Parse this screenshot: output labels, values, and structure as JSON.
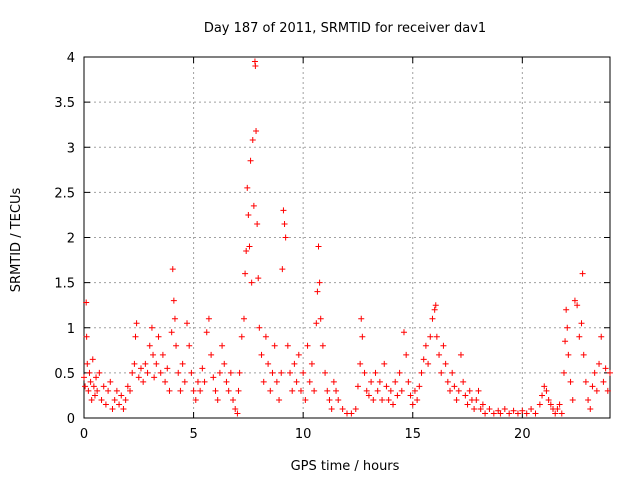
{
  "chart_data": {
    "type": "scatter",
    "title": "Day 187 of 2011, SRMTID for receiver dav1",
    "xlabel": "GPS time / hours",
    "ylabel": "SRMTID / TECUs",
    "xlim": [
      0,
      24
    ],
    "ylim": [
      0,
      4
    ],
    "x_ticks": [
      0,
      5,
      10,
      15,
      20
    ],
    "x_tick_labels": [
      "0",
      "5",
      "10",
      "15",
      "20"
    ],
    "y_ticks": [
      0,
      0.5,
      1,
      1.5,
      2,
      2.5,
      3,
      3.5,
      4
    ],
    "y_tick_labels": [
      "0",
      "0.5",
      "1",
      "1.5",
      "2",
      "2.5",
      "3",
      "3.5",
      "4"
    ],
    "grid": true,
    "marker": "plus",
    "colors": {
      "series": "#ff0000",
      "grid": "#a0a0a0",
      "axis": "#000000"
    },
    "series": [
      {
        "name": "dav1",
        "points": [
          [
            0.0,
            0.45
          ],
          [
            0.05,
            0.35
          ],
          [
            0.1,
            1.28
          ],
          [
            0.12,
            0.9
          ],
          [
            0.15,
            0.6
          ],
          [
            0.2,
            0.3
          ],
          [
            0.25,
            0.5
          ],
          [
            0.3,
            0.4
          ],
          [
            0.35,
            0.2
          ],
          [
            0.4,
            0.65
          ],
          [
            0.45,
            0.35
          ],
          [
            0.5,
            0.25
          ],
          [
            0.55,
            0.45
          ],
          [
            0.6,
            0.3
          ],
          [
            0.7,
            0.5
          ],
          [
            0.8,
            0.2
          ],
          [
            0.9,
            0.35
          ],
          [
            1.0,
            0.15
          ],
          [
            1.1,
            0.3
          ],
          [
            1.2,
            0.4
          ],
          [
            1.3,
            0.1
          ],
          [
            1.4,
            0.2
          ],
          [
            1.5,
            0.3
          ],
          [
            1.6,
            0.15
          ],
          [
            1.7,
            0.25
          ],
          [
            1.8,
            0.1
          ],
          [
            1.9,
            0.2
          ],
          [
            2.0,
            0.35
          ],
          [
            2.1,
            0.3
          ],
          [
            2.2,
            0.5
          ],
          [
            2.3,
            0.6
          ],
          [
            2.35,
            0.9
          ],
          [
            2.4,
            1.05
          ],
          [
            2.5,
            0.45
          ],
          [
            2.6,
            0.55
          ],
          [
            2.7,
            0.4
          ],
          [
            2.8,
            0.6
          ],
          [
            2.9,
            0.5
          ],
          [
            3.0,
            0.8
          ],
          [
            3.1,
            1.0
          ],
          [
            3.15,
            0.7
          ],
          [
            3.2,
            0.45
          ],
          [
            3.3,
            0.6
          ],
          [
            3.4,
            0.9
          ],
          [
            3.5,
            0.5
          ],
          [
            3.6,
            0.7
          ],
          [
            3.7,
            0.4
          ],
          [
            3.8,
            0.55
          ],
          [
            3.9,
            0.3
          ],
          [
            4.0,
            0.95
          ],
          [
            4.05,
            1.65
          ],
          [
            4.1,
            1.3
          ],
          [
            4.15,
            1.1
          ],
          [
            4.2,
            0.8
          ],
          [
            4.3,
            0.5
          ],
          [
            4.4,
            0.3
          ],
          [
            4.5,
            0.6
          ],
          [
            4.6,
            0.4
          ],
          [
            4.7,
            1.05
          ],
          [
            4.8,
            0.8
          ],
          [
            4.9,
            0.5
          ],
          [
            5.0,
            0.3
          ],
          [
            5.1,
            0.2
          ],
          [
            5.2,
            0.4
          ],
          [
            5.3,
            0.3
          ],
          [
            5.4,
            0.55
          ],
          [
            5.5,
            0.4
          ],
          [
            5.6,
            0.95
          ],
          [
            5.7,
            1.1
          ],
          [
            5.8,
            0.7
          ],
          [
            5.9,
            0.45
          ],
          [
            6.0,
            0.3
          ],
          [
            6.1,
            0.2
          ],
          [
            6.2,
            0.5
          ],
          [
            6.3,
            0.8
          ],
          [
            6.4,
            0.6
          ],
          [
            6.5,
            0.4
          ],
          [
            6.6,
            0.3
          ],
          [
            6.7,
            0.5
          ],
          [
            6.8,
            0.2
          ],
          [
            6.9,
            0.1
          ],
          [
            7.0,
            0.05
          ],
          [
            7.05,
            0.3
          ],
          [
            7.1,
            0.5
          ],
          [
            7.2,
            0.9
          ],
          [
            7.3,
            1.1
          ],
          [
            7.35,
            1.6
          ],
          [
            7.4,
            1.85
          ],
          [
            7.45,
            2.55
          ],
          [
            7.5,
            2.25
          ],
          [
            7.55,
            1.9
          ],
          [
            7.6,
            2.85
          ],
          [
            7.65,
            1.5
          ],
          [
            7.7,
            3.08
          ],
          [
            7.75,
            2.35
          ],
          [
            7.8,
            3.95
          ],
          [
            7.82,
            3.9
          ],
          [
            7.85,
            3.18
          ],
          [
            7.9,
            2.15
          ],
          [
            7.95,
            1.55
          ],
          [
            8.0,
            1.0
          ],
          [
            8.1,
            0.7
          ],
          [
            8.2,
            0.4
          ],
          [
            8.3,
            0.9
          ],
          [
            8.4,
            0.6
          ],
          [
            8.5,
            0.3
          ],
          [
            8.6,
            0.5
          ],
          [
            8.7,
            0.8
          ],
          [
            8.8,
            0.4
          ],
          [
            8.9,
            0.2
          ],
          [
            9.0,
            0.5
          ],
          [
            9.05,
            1.65
          ],
          [
            9.1,
            2.3
          ],
          [
            9.15,
            2.15
          ],
          [
            9.2,
            2.0
          ],
          [
            9.3,
            0.8
          ],
          [
            9.4,
            0.5
          ],
          [
            9.5,
            0.3
          ],
          [
            9.6,
            0.6
          ],
          [
            9.7,
            0.4
          ],
          [
            9.8,
            0.7
          ],
          [
            9.9,
            0.3
          ],
          [
            10.0,
            0.5
          ],
          [
            10.1,
            0.2
          ],
          [
            10.2,
            0.8
          ],
          [
            10.3,
            0.4
          ],
          [
            10.4,
            0.6
          ],
          [
            10.5,
            0.3
          ],
          [
            10.6,
            1.05
          ],
          [
            10.65,
            1.4
          ],
          [
            10.7,
            1.9
          ],
          [
            10.75,
            1.5
          ],
          [
            10.8,
            1.1
          ],
          [
            10.9,
            0.8
          ],
          [
            11.0,
            0.5
          ],
          [
            11.1,
            0.3
          ],
          [
            11.2,
            0.2
          ],
          [
            11.3,
            0.1
          ],
          [
            11.4,
            0.4
          ],
          [
            11.5,
            0.3
          ],
          [
            11.6,
            0.2
          ],
          [
            11.8,
            0.1
          ],
          [
            12.0,
            0.05
          ],
          [
            12.2,
            0.05
          ],
          [
            12.4,
            0.1
          ],
          [
            12.5,
            0.35
          ],
          [
            12.6,
            0.6
          ],
          [
            12.65,
            1.1
          ],
          [
            12.7,
            0.9
          ],
          [
            12.8,
            0.5
          ],
          [
            12.9,
            0.3
          ],
          [
            13.0,
            0.25
          ],
          [
            13.1,
            0.4
          ],
          [
            13.2,
            0.2
          ],
          [
            13.3,
            0.5
          ],
          [
            13.4,
            0.3
          ],
          [
            13.5,
            0.4
          ],
          [
            13.6,
            0.2
          ],
          [
            13.7,
            0.6
          ],
          [
            13.8,
            0.35
          ],
          [
            13.9,
            0.2
          ],
          [
            14.0,
            0.3
          ],
          [
            14.1,
            0.15
          ],
          [
            14.2,
            0.4
          ],
          [
            14.3,
            0.25
          ],
          [
            14.4,
            0.5
          ],
          [
            14.5,
            0.3
          ],
          [
            14.6,
            0.95
          ],
          [
            14.7,
            0.7
          ],
          [
            14.8,
            0.4
          ],
          [
            14.9,
            0.25
          ],
          [
            15.0,
            0.15
          ],
          [
            15.1,
            0.3
          ],
          [
            15.2,
            0.2
          ],
          [
            15.3,
            0.35
          ],
          [
            15.4,
            0.5
          ],
          [
            15.5,
            0.65
          ],
          [
            15.6,
            0.8
          ],
          [
            15.7,
            0.6
          ],
          [
            15.8,
            0.9
          ],
          [
            15.9,
            1.1
          ],
          [
            16.0,
            1.2
          ],
          [
            16.05,
            1.25
          ],
          [
            16.1,
            0.9
          ],
          [
            16.2,
            0.7
          ],
          [
            16.3,
            0.5
          ],
          [
            16.4,
            0.8
          ],
          [
            16.5,
            0.6
          ],
          [
            16.6,
            0.4
          ],
          [
            16.7,
            0.3
          ],
          [
            16.8,
            0.5
          ],
          [
            16.9,
            0.35
          ],
          [
            17.0,
            0.2
          ],
          [
            17.1,
            0.3
          ],
          [
            17.2,
            0.7
          ],
          [
            17.3,
            0.4
          ],
          [
            17.4,
            0.25
          ],
          [
            17.5,
            0.15
          ],
          [
            17.6,
            0.3
          ],
          [
            17.7,
            0.2
          ],
          [
            17.8,
            0.1
          ],
          [
            17.9,
            0.2
          ],
          [
            18.0,
            0.3
          ],
          [
            18.1,
            0.1
          ],
          [
            18.2,
            0.15
          ],
          [
            18.3,
            0.05
          ],
          [
            18.5,
            0.1
          ],
          [
            18.7,
            0.05
          ],
          [
            18.9,
            0.08
          ],
          [
            19.0,
            0.05
          ],
          [
            19.2,
            0.1
          ],
          [
            19.4,
            0.05
          ],
          [
            19.6,
            0.08
          ],
          [
            19.8,
            0.05
          ],
          [
            20.0,
            0.08
          ],
          [
            20.2,
            0.05
          ],
          [
            20.4,
            0.1
          ],
          [
            20.6,
            0.05
          ],
          [
            20.8,
            0.15
          ],
          [
            20.9,
            0.25
          ],
          [
            21.0,
            0.35
          ],
          [
            21.1,
            0.3
          ],
          [
            21.2,
            0.2
          ],
          [
            21.3,
            0.15
          ],
          [
            21.4,
            0.1
          ],
          [
            21.5,
            0.05
          ],
          [
            21.6,
            0.1
          ],
          [
            21.7,
            0.15
          ],
          [
            21.8,
            0.05
          ],
          [
            21.9,
            0.5
          ],
          [
            21.95,
            0.85
          ],
          [
            22.0,
            1.2
          ],
          [
            22.05,
            1.0
          ],
          [
            22.1,
            0.7
          ],
          [
            22.2,
            0.4
          ],
          [
            22.3,
            0.2
          ],
          [
            22.4,
            1.3
          ],
          [
            22.5,
            1.25
          ],
          [
            22.6,
            0.9
          ],
          [
            22.7,
            1.05
          ],
          [
            22.75,
            1.6
          ],
          [
            22.8,
            0.7
          ],
          [
            22.9,
            0.4
          ],
          [
            23.0,
            0.2
          ],
          [
            23.1,
            0.1
          ],
          [
            23.2,
            0.35
          ],
          [
            23.3,
            0.5
          ],
          [
            23.4,
            0.3
          ],
          [
            23.5,
            0.6
          ],
          [
            23.6,
            0.9
          ],
          [
            23.7,
            0.4
          ],
          [
            23.8,
            0.55
          ],
          [
            23.9,
            0.3
          ],
          [
            24.0,
            0.5
          ]
        ]
      }
    ]
  }
}
